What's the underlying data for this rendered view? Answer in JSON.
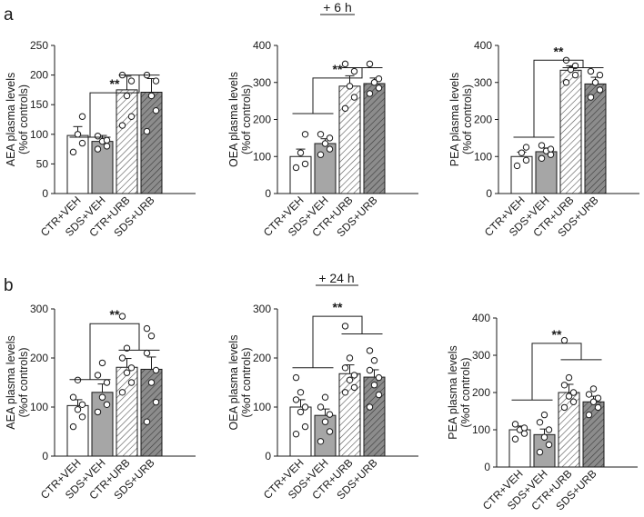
{
  "figure": {
    "panel_labels": [
      "a",
      "b"
    ],
    "timepoints": [
      "+ 6 h",
      "+ 24 h"
    ],
    "significance_label": "**"
  },
  "colors": {
    "ctr_veh": "#ffffff",
    "sds_veh": "#a6a6a6",
    "ctr_urb": "#ffffff",
    "sds_urb": "#8c8c8c",
    "stroke": "#1a1a1a"
  },
  "chart_data": [
    {
      "type": "bar",
      "panel": "a",
      "timepoint": "+ 6 h",
      "categories": [
        "CTR+VEH",
        "SDS+VEH",
        "CTR+URB",
        "SDS+URB"
      ],
      "ylabel": [
        "AEA plasma levels",
        "(%of controls)"
      ],
      "ylim": [
        0,
        250
      ],
      "yticks": [
        0,
        50,
        100,
        150,
        200,
        250
      ],
      "values": [
        98,
        88,
        175,
        171
      ],
      "errors": [
        15,
        10,
        23,
        23
      ],
      "points": [
        [
          70,
          85,
          100,
          130
        ],
        [
          75,
          80,
          88,
          90,
          97
        ],
        [
          115,
          130,
          165,
          190,
          200
        ],
        [
          105,
          140,
          165,
          190,
          200
        ]
      ],
      "significance": "**"
    },
    {
      "type": "bar",
      "panel": "a",
      "timepoint": "+ 6 h",
      "categories": [
        "CTR+VEH",
        "SDS+VEH",
        "CTR+URB",
        "SDS+URB"
      ],
      "ylabel": [
        "OEA plasma levels",
        "(%of controls)"
      ],
      "ylim": [
        0,
        400
      ],
      "yticks": [
        0,
        100,
        200,
        300,
        400
      ],
      "values": [
        100,
        135,
        290,
        297
      ],
      "errors": [
        20,
        13,
        28,
        15
      ],
      "points": [
        [
          70,
          80,
          110,
          160
        ],
        [
          105,
          120,
          135,
          150,
          160
        ],
        [
          230,
          260,
          290,
          330,
          350
        ],
        [
          270,
          285,
          300,
          310,
          350
        ]
      ],
      "significance": "**"
    },
    {
      "type": "bar",
      "panel": "a",
      "timepoint": "+ 6 h",
      "categories": [
        "CTR+VEH",
        "SDS+VEH",
        "CTR+URB",
        "SDS+URB"
      ],
      "ylabel": [
        "PEA plasma levels",
        "(%of controls)"
      ],
      "ylim": [
        0,
        400
      ],
      "yticks": [
        0,
        100,
        200,
        300,
        400
      ],
      "values": [
        100,
        113,
        333,
        296
      ],
      "errors": [
        12,
        10,
        12,
        18
      ],
      "points": [
        [
          75,
          90,
          110,
          125
        ],
        [
          95,
          105,
          115,
          120,
          130
        ],
        [
          300,
          320,
          335,
          345,
          360
        ],
        [
          260,
          280,
          300,
          320,
          330
        ]
      ],
      "significance": "**"
    },
    {
      "type": "bar",
      "panel": "b",
      "timepoint": "+ 24 h",
      "categories": [
        "CTR+VEH",
        "SDS+VEH",
        "CTR+URB",
        "SDS+URB"
      ],
      "ylabel": [
        "AEA plasma levels",
        "(%of controls)"
      ],
      "ylim": [
        0,
        300
      ],
      "yticks": [
        0,
        100,
        200,
        300
      ],
      "values": [
        103,
        130,
        181,
        177
      ],
      "errors": [
        12,
        17,
        18,
        25
      ],
      "points": [
        [
          60,
          80,
          95,
          105,
          120,
          155
        ],
        [
          90,
          105,
          120,
          150,
          165,
          190
        ],
        [
          130,
          150,
          170,
          180,
          200,
          220,
          285
        ],
        [
          70,
          110,
          150,
          175,
          210,
          245,
          260
        ]
      ],
      "significance": "**"
    },
    {
      "type": "bar",
      "panel": "b",
      "timepoint": "+ 24 h",
      "categories": [
        "CTR+VEH",
        "SDS+VEH",
        "CTR+URB",
        "SDS+URB"
      ],
      "ylabel": [
        "OEA plasma levels",
        "(%of controls)"
      ],
      "ylim": [
        0,
        300
      ],
      "yticks": [
        0,
        100,
        200,
        300
      ],
      "values": [
        100,
        83,
        168,
        161
      ],
      "errors": [
        15,
        13,
        18,
        15
      ],
      "points": [
        [
          45,
          60,
          90,
          100,
          115,
          130,
          160
        ],
        [
          30,
          50,
          70,
          85,
          100,
          120
        ],
        [
          130,
          140,
          155,
          165,
          180,
          200,
          265
        ],
        [
          100,
          125,
          145,
          160,
          175,
          195,
          215
        ]
      ],
      "significance": "**"
    },
    {
      "type": "bar",
      "panel": "b",
      "timepoint": "+ 24 h",
      "categories": [
        "CTR+VEH",
        "SDS+VEH",
        "CTR+URB",
        "SDS+URB"
      ],
      "ylabel": [
        "PEA plasma levels",
        "(%of controls)"
      ],
      "ylim": [
        0,
        400
      ],
      "yticks": [
        0,
        100,
        200,
        300,
        400
      ],
      "values": [
        100,
        87,
        200,
        175
      ],
      "errors": [
        10,
        15,
        22,
        15
      ],
      "points": [
        [
          75,
          90,
          100,
          105,
          115
        ],
        [
          40,
          60,
          80,
          100,
          120,
          140
        ],
        [
          160,
          175,
          190,
          200,
          220,
          240,
          340
        ],
        [
          140,
          160,
          175,
          185,
          195,
          210
        ]
      ],
      "significance": "**"
    }
  ]
}
